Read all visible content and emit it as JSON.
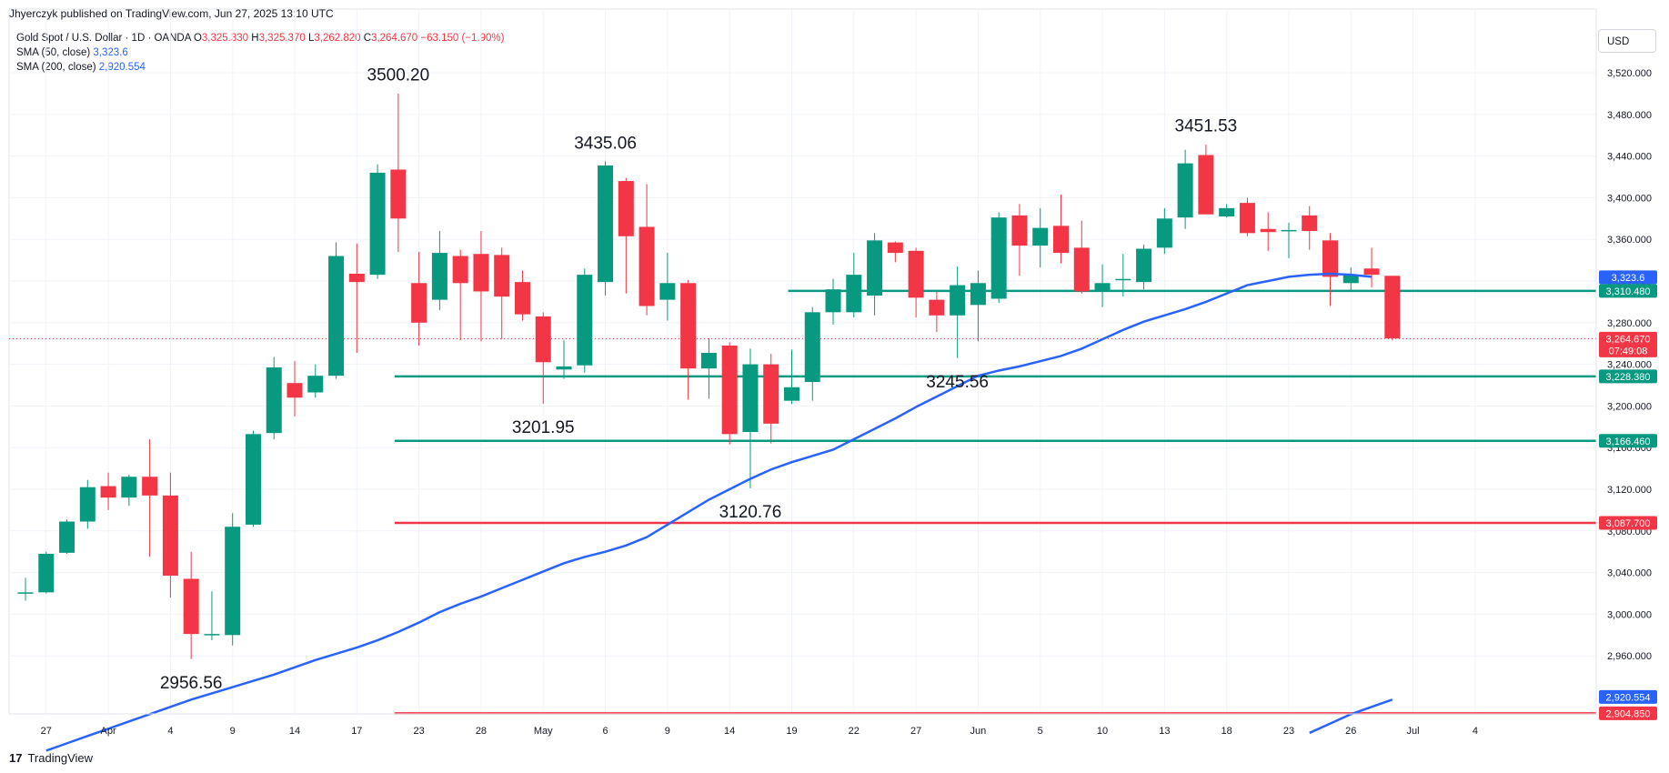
{
  "header": {
    "publish_line": "Jhyerczyk published on TradingView.com, Jun 27, 2025 13:10 UTC"
  },
  "legend": {
    "instrument": "Gold Spot / U.S. Dollar · 1D · OANDA",
    "o_label": "O",
    "o_value": "3,325.330",
    "h_label": "H",
    "h_value": "3,325.370",
    "l_label": "L",
    "l_value": "3,262.820",
    "c_label": "C",
    "c_value": "3,264.670",
    "change": "−63.150 (−1.90%)",
    "sma50_label": "SMA (50, close)",
    "sma50_value": "3,323.6",
    "sma200_label": "SMA (200, close)",
    "sma200_value": "2,920.554"
  },
  "currency": "USD",
  "brand": {
    "logo": "17",
    "name": "TradingView"
  },
  "chart_data": {
    "type": "candlestick",
    "title": "Gold Spot / U.S. Dollar",
    "timeframe": "1D",
    "source": "OANDA",
    "ylim": [
      2890,
      3560
    ],
    "y_ticks": [
      "2,960.000",
      "3,000.000",
      "3,040.000",
      "3,080.000",
      "3,120.000",
      "3,160.000",
      "3,200.000",
      "3,240.000",
      "3,280.000",
      "3,320.000",
      "3,360.000",
      "3,400.000",
      "3,440.000",
      "3,480.000",
      "3,520.000"
    ],
    "y_tick_values": [
      2960,
      3000,
      3040,
      3080,
      3120,
      3160,
      3200,
      3240,
      3280,
      3320,
      3360,
      3400,
      3440,
      3480,
      3520
    ],
    "x_ticks": [
      "27",
      "Apr",
      "4",
      "9",
      "14",
      "17",
      "23",
      "28",
      "May",
      "6",
      "9",
      "14",
      "19",
      "22",
      "27",
      "Jun",
      "5",
      "10",
      "13",
      "18",
      "23",
      "26",
      "Jul",
      "4"
    ],
    "x_tick_index": [
      1,
      4,
      7,
      10,
      13,
      16,
      19,
      22,
      25,
      28,
      31,
      34,
      37,
      40,
      43,
      46,
      49,
      52,
      55,
      58,
      61,
      64,
      67,
      70
    ],
    "candles": [
      {
        "o": 3021,
        "h": 3035,
        "l": 3013,
        "c": 3021
      },
      {
        "o": 3021,
        "h": 3060,
        "l": 3020,
        "c": 3058
      },
      {
        "o": 3059,
        "h": 3091,
        "l": 3058,
        "c": 3089
      },
      {
        "o": 3089,
        "h": 3129,
        "l": 3082,
        "c": 3122
      },
      {
        "o": 3123,
        "h": 3136,
        "l": 3100,
        "c": 3112
      },
      {
        "o": 3112,
        "h": 3134,
        "l": 3104,
        "c": 3132
      },
      {
        "o": 3132,
        "h": 3168,
        "l": 3055,
        "c": 3114
      },
      {
        "o": 3114,
        "h": 3136,
        "l": 3016,
        "c": 3037
      },
      {
        "o": 3034,
        "h": 3060,
        "l": 2957,
        "c": 2981
      },
      {
        "o": 2980,
        "h": 3022,
        "l": 2975,
        "c": 2981
      },
      {
        "o": 2980,
        "h": 3097,
        "l": 2970,
        "c": 3084
      },
      {
        "o": 3086,
        "h": 3176,
        "l": 3084,
        "c": 3173
      },
      {
        "o": 3174,
        "h": 3247,
        "l": 3168,
        "c": 3237
      },
      {
        "o": 3222,
        "h": 3243,
        "l": 3190,
        "c": 3208
      },
      {
        "o": 3213,
        "h": 3240,
        "l": 3208,
        "c": 3229
      },
      {
        "o": 3229,
        "h": 3357,
        "l": 3226,
        "c": 3344
      },
      {
        "o": 3327,
        "h": 3356,
        "l": 3251,
        "c": 3319
      },
      {
        "o": 3326,
        "h": 3432,
        "l": 3322,
        "c": 3424
      },
      {
        "o": 3427,
        "h": 3500,
        "l": 3348,
        "c": 3380
      },
      {
        "o": 3318,
        "h": 3348,
        "l": 3258,
        "c": 3280
      },
      {
        "o": 3302,
        "h": 3368,
        "l": 3292,
        "c": 3347
      },
      {
        "o": 3344,
        "h": 3350,
        "l": 3263,
        "c": 3318
      },
      {
        "o": 3346,
        "h": 3368,
        "l": 3262,
        "c": 3310
      },
      {
        "o": 3345,
        "h": 3352,
        "l": 3264,
        "c": 3305
      },
      {
        "o": 3319,
        "h": 3330,
        "l": 3282,
        "c": 3288
      },
      {
        "o": 3286,
        "h": 3290,
        "l": 3202,
        "c": 3242
      },
      {
        "o": 3235,
        "h": 3263,
        "l": 3226,
        "c": 3238
      },
      {
        "o": 3239,
        "h": 3332,
        "l": 3232,
        "c": 3326
      },
      {
        "o": 3319,
        "h": 3435,
        "l": 3306,
        "c": 3431
      },
      {
        "o": 3416,
        "h": 3419,
        "l": 3308,
        "c": 3363
      },
      {
        "o": 3372,
        "h": 3413,
        "l": 3287,
        "c": 3296
      },
      {
        "o": 3302,
        "h": 3347,
        "l": 3282,
        "c": 3318
      },
      {
        "o": 3318,
        "h": 3321,
        "l": 3206,
        "c": 3236
      },
      {
        "o": 3236,
        "h": 3265,
        "l": 3207,
        "c": 3251
      },
      {
        "o": 3258,
        "h": 3261,
        "l": 3163,
        "c": 3173
      },
      {
        "o": 3175,
        "h": 3255,
        "l": 3121,
        "c": 3240
      },
      {
        "o": 3240,
        "h": 3250,
        "l": 3164,
        "c": 3183
      },
      {
        "o": 3205,
        "h": 3254,
        "l": 3202,
        "c": 3218
      },
      {
        "o": 3223,
        "h": 3295,
        "l": 3205,
        "c": 3290
      },
      {
        "o": 3290,
        "h": 3322,
        "l": 3278,
        "c": 3312
      },
      {
        "o": 3290,
        "h": 3347,
        "l": 3285,
        "c": 3326
      },
      {
        "o": 3306,
        "h": 3366,
        "l": 3287,
        "c": 3359
      },
      {
        "o": 3357,
        "h": 3358,
        "l": 3338,
        "c": 3347
      },
      {
        "o": 3349,
        "h": 3352,
        "l": 3285,
        "c": 3304
      },
      {
        "o": 3302,
        "h": 3310,
        "l": 3271,
        "c": 3287
      },
      {
        "o": 3287,
        "h": 3334,
        "l": 3246,
        "c": 3316
      },
      {
        "o": 3297,
        "h": 3330,
        "l": 3262,
        "c": 3318
      },
      {
        "o": 3303,
        "h": 3386,
        "l": 3299,
        "c": 3381
      },
      {
        "o": 3383,
        "h": 3394,
        "l": 3325,
        "c": 3354
      },
      {
        "o": 3354,
        "h": 3390,
        "l": 3333,
        "c": 3371
      },
      {
        "o": 3373,
        "h": 3403,
        "l": 3337,
        "c": 3347
      },
      {
        "o": 3352,
        "h": 3378,
        "l": 3308,
        "c": 3310
      },
      {
        "o": 3311,
        "h": 3336,
        "l": 3295,
        "c": 3318
      },
      {
        "o": 3321,
        "h": 3346,
        "l": 3305,
        "c": 3322
      },
      {
        "o": 3319,
        "h": 3355,
        "l": 3312,
        "c": 3351
      },
      {
        "o": 3352,
        "h": 3390,
        "l": 3346,
        "c": 3380
      },
      {
        "o": 3381,
        "h": 3446,
        "l": 3370,
        "c": 3433
      },
      {
        "o": 3441,
        "h": 3451,
        "l": 3384,
        "c": 3384
      },
      {
        "o": 3382,
        "h": 3394,
        "l": 3381,
        "c": 3390
      },
      {
        "o": 3395,
        "h": 3400,
        "l": 3363,
        "c": 3366
      },
      {
        "o": 3370,
        "h": 3386,
        "l": 3349,
        "c": 3367
      },
      {
        "o": 3368,
        "h": 3376,
        "l": 3342,
        "c": 3369
      },
      {
        "o": 3383,
        "h": 3392,
        "l": 3350,
        "c": 3368
      },
      {
        "o": 3359,
        "h": 3366,
        "l": 3296,
        "c": 3324
      },
      {
        "o": 3318,
        "h": 3333,
        "l": 3311,
        "c": 3326
      },
      {
        "o": 3332,
        "h": 3352,
        "l": 3314,
        "c": 3326
      },
      {
        "o": 3325,
        "h": 3325,
        "l": 3263,
        "c": 3265
      }
    ],
    "sma50": [
      2869,
      2876,
      2883,
      2890,
      2897,
      2904,
      2911,
      2918,
      2924,
      2930,
      2936,
      2942,
      2949,
      2956,
      2962,
      2968,
      2975,
      2983,
      2992,
      3002,
      3010,
      3017,
      3025,
      3033,
      3041,
      3049,
      3055,
      3060,
      3066,
      3074,
      3086,
      3098,
      3110,
      3120,
      3130,
      3139,
      3146,
      3152,
      3158,
      3168,
      3178,
      3188,
      3199,
      3209,
      3219,
      3229,
      3234,
      3238,
      3243,
      3248,
      3255,
      3264,
      3273,
      3281,
      3287,
      3293,
      3300,
      3308,
      3316,
      3320,
      3324,
      3326,
      3327,
      3326,
      3324
    ],
    "sma50_start_index": 1,
    "sma200_segment": [
      [
        62,
        2886
      ],
      [
        63,
        2895
      ],
      [
        64,
        2904
      ],
      [
        65,
        2911
      ],
      [
        66,
        2918
      ]
    ],
    "horizontal_lines": [
      {
        "value": 3310.48,
        "label": "3,310.480",
        "color": "#089981",
        "start_index": 37
      },
      {
        "value": 3228.38,
        "label": "3,228.380",
        "color": "#089981",
        "start_index": 18
      },
      {
        "value": 3166.46,
        "label": "3,166.460",
        "color": "#089981",
        "start_index": 18
      },
      {
        "value": 3087.7,
        "label": "3,087.700",
        "color": "#f23645",
        "start_index": 18
      },
      {
        "value": 2904.85,
        "label": "2,904.850",
        "color": "#f23645",
        "start_index": 18
      }
    ],
    "current_price": {
      "value": 3264.67,
      "label": "3,264.670",
      "countdown": "07:49:08"
    },
    "sma50_tag": {
      "value": 3323.6,
      "label": "3,323.6"
    },
    "sma200_tag": {
      "value": 2920.554,
      "label": "2,920.554"
    },
    "annotations": [
      {
        "text": "3500.20",
        "index": 18,
        "value": 3500.2,
        "pos": "above"
      },
      {
        "text": "3435.06",
        "index": 28,
        "value": 3435.06,
        "pos": "above"
      },
      {
        "text": "3451.53",
        "index": 57,
        "value": 3451.53,
        "pos": "above"
      },
      {
        "text": "3201.95",
        "index": 25,
        "value": 3201.95,
        "pos": "below"
      },
      {
        "text": "3120.76",
        "index": 35,
        "value": 3120.76,
        "pos": "below"
      },
      {
        "text": "3245.56",
        "index": 45,
        "value": 3245.56,
        "pos": "below"
      },
      {
        "text": "2956.56",
        "index": 8,
        "value": 2956.56,
        "pos": "below"
      }
    ]
  }
}
